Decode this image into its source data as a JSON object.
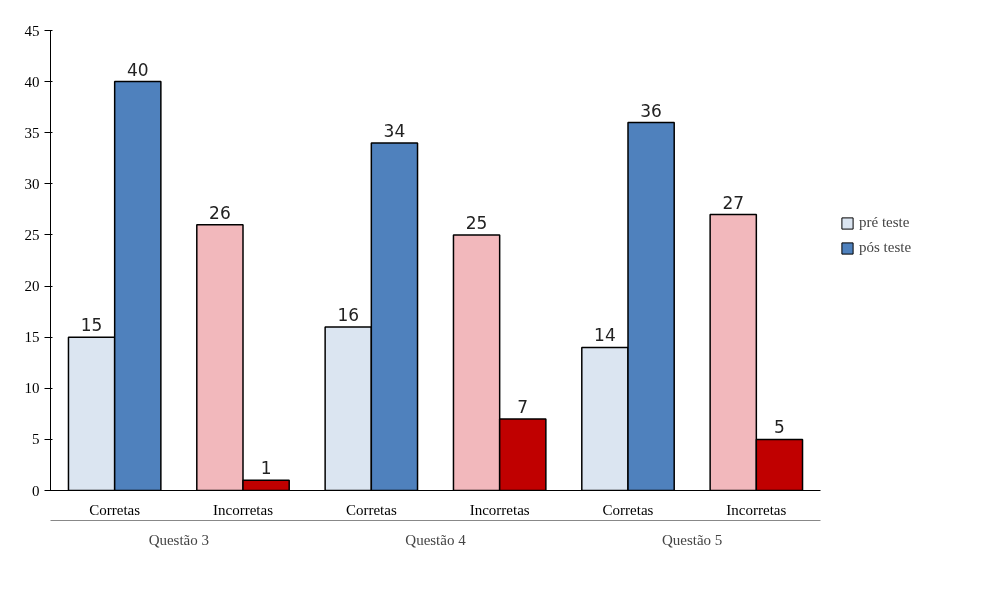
{
  "chart_data": {
    "type": "bar",
    "categories": [
      "Corretas",
      "Incorretas",
      "Corretas",
      "Incorretas",
      "Corretas",
      "Incorretas"
    ],
    "annotations": [
      "Questão 3",
      "Questão 4",
      "Questão 5"
    ],
    "series": [
      {
        "name": "pré teste",
        "color": "#dbe5f1",
        "values": [
          15,
          26,
          16,
          25,
          14,
          27
        ],
        "colors": [
          "#dbe5f1",
          "#f2b8bc",
          "#dbe5f1",
          "#f2b8bc",
          "#dbe5f1",
          "#f2b8bc"
        ]
      },
      {
        "name": "pós teste",
        "color": "#4f81bd",
        "values": [
          40,
          1,
          34,
          7,
          36,
          5
        ],
        "colors": [
          "#4f81bd",
          "#c00000",
          "#4f81bd",
          "#c00000",
          "#4f81bd",
          "#c00000"
        ]
      }
    ],
    "ylim": [
      0,
      45
    ],
    "yticks": [
      0,
      5,
      10,
      15,
      20,
      25,
      30,
      35,
      40,
      45
    ],
    "grid": false,
    "legend": "right",
    "data_labels": true
  }
}
